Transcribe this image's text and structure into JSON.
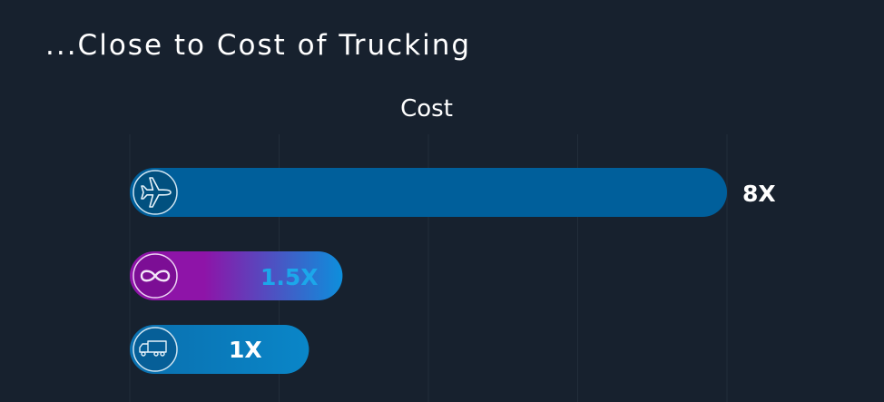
{
  "slide": {
    "title": "...Close to Cost of Trucking"
  },
  "chart_data": {
    "type": "bar",
    "orientation": "horizontal",
    "title": "Cost",
    "xlabel": "",
    "ylabel": "",
    "grid": true,
    "xlim": [
      0,
      8
    ],
    "categories": [
      "plane",
      "infinity",
      "truck"
    ],
    "values": [
      8,
      1.5,
      1
    ],
    "value_labels": [
      "8X",
      "1.5X",
      "1X"
    ],
    "bar_icons": [
      "plane-icon",
      "infinity-icon",
      "truck-icon"
    ],
    "colors": {
      "plane": "#005f9b",
      "infinity_start": "#8e14a8",
      "infinity_end": "#0d8fdc",
      "truck": "#0078bb",
      "label_default": "#ffffff",
      "label_highlight": "#1ca7ea"
    }
  }
}
